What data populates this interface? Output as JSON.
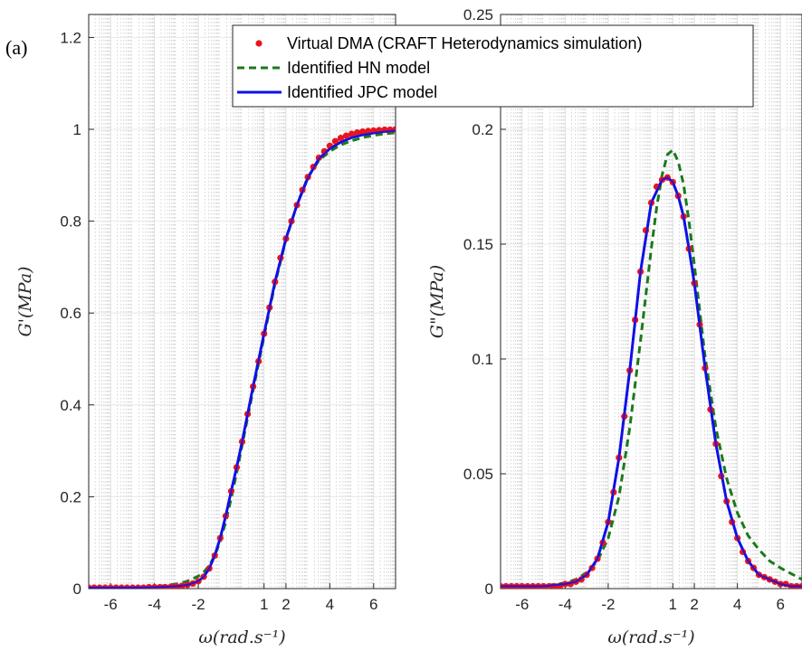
{
  "panel_label": "(a)",
  "legend": {
    "entries": [
      {
        "label": "Virtual DMA (CRAFT Heterodynamics simulation)",
        "color": "#e8141f",
        "style": "dots"
      },
      {
        "label": "Identified HN model",
        "color": "#1a7a1a",
        "style": "dashed"
      },
      {
        "label": "Identified JPC model",
        "color": "#1010e6",
        "style": "solid"
      }
    ]
  },
  "colors": {
    "dma": "#e8141f",
    "hn": "#1a7a1a",
    "jpc": "#1010e6",
    "grid": "#c8c8c8"
  },
  "chart_data": [
    {
      "type": "line",
      "xlabel": "ω(rad.s⁻¹)",
      "ylabel": "G'(MPa)",
      "xlim": [
        -7,
        7
      ],
      "ylim": [
        0,
        1.25
      ],
      "xticks": [
        -6,
        -4,
        -2,
        1,
        2,
        4,
        6
      ],
      "xtick_labels": [
        "-6",
        "-4",
        "-2",
        "1",
        "2",
        "4",
        "6"
      ],
      "yticks": [
        0,
        0.2,
        0.4,
        0.6,
        0.8,
        1,
        1.2
      ],
      "ytick_labels": [
        "0",
        "0.2",
        "0.4",
        "0.6",
        "0.8",
        "1",
        "1.2"
      ],
      "grid": true,
      "series": [
        {
          "name": "Virtual DMA (CRAFT Heterodynamics simulation)",
          "style": "dots",
          "x": [
            -7.0,
            -6.75,
            -6.5,
            -6.25,
            -6.0,
            -5.75,
            -5.5,
            -5.25,
            -5.0,
            -4.75,
            -4.5,
            -4.25,
            -4.0,
            -3.75,
            -3.5,
            -3.25,
            -3.0,
            -2.75,
            -2.5,
            -2.25,
            -2.0,
            -1.75,
            -1.5,
            -1.25,
            -1.0,
            -0.75,
            -0.5,
            -0.25,
            0.0,
            0.25,
            0.5,
            0.75,
            1.0,
            1.25,
            1.5,
            1.75,
            2.0,
            2.25,
            2.5,
            2.75,
            3.0,
            3.25,
            3.5,
            3.75,
            4.0,
            4.25,
            4.5,
            4.75,
            5.0,
            5.25,
            5.5,
            5.75,
            6.0,
            6.25,
            6.5,
            6.75,
            7.0
          ],
          "y": [
            0.002,
            0.002,
            0.002,
            0.002,
            0.002,
            0.002,
            0.002,
            0.002,
            0.002,
            0.002,
            0.002,
            0.003,
            0.003,
            0.003,
            0.003,
            0.004,
            0.005,
            0.006,
            0.008,
            0.011,
            0.016,
            0.026,
            0.044,
            0.072,
            0.11,
            0.158,
            0.212,
            0.264,
            0.32,
            0.38,
            0.44,
            0.495,
            0.555,
            0.612,
            0.668,
            0.72,
            0.762,
            0.8,
            0.835,
            0.868,
            0.896,
            0.918,
            0.938,
            0.952,
            0.964,
            0.974,
            0.981,
            0.986,
            0.99,
            0.993,
            0.995,
            0.996,
            0.997,
            0.998,
            0.999,
            0.999,
            1.0
          ]
        },
        {
          "name": "Identified HN model",
          "style": "dashed",
          "x": [
            -7.0,
            -6.0,
            -5.0,
            -4.0,
            -3.0,
            -2.5,
            -2.0,
            -1.75,
            -1.5,
            -1.25,
            -1.0,
            -0.75,
            -0.5,
            -0.25,
            0.0,
            0.5,
            1.0,
            1.5,
            2.0,
            2.5,
            3.0,
            3.5,
            4.0,
            4.5,
            5.0,
            5.5,
            6.0,
            6.5,
            7.0
          ],
          "y": [
            0.002,
            0.002,
            0.003,
            0.004,
            0.01,
            0.016,
            0.027,
            0.036,
            0.05,
            0.072,
            0.103,
            0.145,
            0.196,
            0.252,
            0.312,
            0.432,
            0.549,
            0.664,
            0.76,
            0.836,
            0.896,
            0.932,
            0.952,
            0.966,
            0.975,
            0.982,
            0.987,
            0.99,
            0.993
          ]
        },
        {
          "name": "Identified JPC model",
          "style": "solid",
          "x": [
            -7.0,
            -6.0,
            -5.0,
            -4.0,
            -3.0,
            -2.5,
            -2.0,
            -1.75,
            -1.5,
            -1.25,
            -1.0,
            -0.75,
            -0.5,
            -0.25,
            0.0,
            0.5,
            1.0,
            1.5,
            2.0,
            2.5,
            3.0,
            3.5,
            4.0,
            4.5,
            5.0,
            5.5,
            6.0,
            6.5,
            7.0
          ],
          "y": [
            0.002,
            0.002,
            0.002,
            0.003,
            0.005,
            0.008,
            0.016,
            0.026,
            0.044,
            0.072,
            0.11,
            0.158,
            0.212,
            0.264,
            0.32,
            0.44,
            0.555,
            0.668,
            0.762,
            0.835,
            0.894,
            0.936,
            0.958,
            0.972,
            0.982,
            0.988,
            0.992,
            0.995,
            0.997
          ]
        }
      ]
    },
    {
      "type": "line",
      "xlabel": "ω(rad.s⁻¹)",
      "ylabel": "G\"(MPa)",
      "xlim": [
        -7,
        7
      ],
      "ylim": [
        0,
        0.25
      ],
      "xticks": [
        -6,
        -4,
        -2,
        1,
        2,
        4,
        6
      ],
      "xtick_labels": [
        "-6",
        "-4",
        "-2",
        "1",
        "2",
        "4",
        "6"
      ],
      "yticks": [
        0,
        0.05,
        0.1,
        0.15,
        0.2,
        0.25
      ],
      "ytick_labels": [
        "0",
        "0.05",
        "0.1",
        "0.15",
        "0.2",
        "0.25"
      ],
      "grid": true,
      "series": [
        {
          "name": "Virtual DMA (CRAFT Heterodynamics simulation)",
          "style": "dots",
          "x": [
            -7.0,
            -6.75,
            -6.5,
            -6.25,
            -6.0,
            -5.75,
            -5.5,
            -5.25,
            -5.0,
            -4.75,
            -4.5,
            -4.25,
            -4.0,
            -3.75,
            -3.5,
            -3.25,
            -3.0,
            -2.75,
            -2.5,
            -2.25,
            -2.0,
            -1.75,
            -1.5,
            -1.25,
            -1.0,
            -0.75,
            -0.5,
            -0.25,
            0.0,
            0.25,
            0.5,
            0.75,
            1.0,
            1.25,
            1.5,
            1.75,
            2.0,
            2.25,
            2.5,
            2.75,
            3.0,
            3.25,
            3.5,
            3.75,
            4.0,
            4.25,
            4.5,
            4.75,
            5.0,
            5.25,
            5.5,
            5.75,
            6.0,
            6.25,
            6.5,
            6.75,
            7.0
          ],
          "y": [
            0.001,
            0.001,
            0.001,
            0.001,
            0.001,
            0.001,
            0.001,
            0.001,
            0.001,
            0.001,
            0.001,
            0.001,
            0.002,
            0.002,
            0.003,
            0.004,
            0.006,
            0.009,
            0.013,
            0.02,
            0.029,
            0.042,
            0.057,
            0.075,
            0.095,
            0.117,
            0.138,
            0.156,
            0.168,
            0.175,
            0.178,
            0.179,
            0.177,
            0.171,
            0.162,
            0.148,
            0.133,
            0.115,
            0.096,
            0.078,
            0.063,
            0.049,
            0.038,
            0.029,
            0.022,
            0.016,
            0.012,
            0.009,
            0.006,
            0.005,
            0.004,
            0.003,
            0.002,
            0.002,
            0.001,
            0.001,
            0.001
          ]
        },
        {
          "name": "Identified HN model",
          "style": "dashed",
          "x": [
            -7.0,
            -6.0,
            -5.0,
            -4.0,
            -3.5,
            -3.0,
            -2.5,
            -2.0,
            -1.5,
            -1.0,
            -0.5,
            0.0,
            0.25,
            0.5,
            0.75,
            1.0,
            1.25,
            1.5,
            1.75,
            2.0,
            2.5,
            3.0,
            3.5,
            4.0,
            4.5,
            5.0,
            5.5,
            6.0,
            7.0
          ],
          "y": [
            0.0005,
            0.0007,
            0.0012,
            0.0025,
            0.004,
            0.007,
            0.012,
            0.022,
            0.04,
            0.07,
            0.108,
            0.148,
            0.166,
            0.18,
            0.189,
            0.191,
            0.186,
            0.176,
            0.16,
            0.141,
            0.101,
            0.07,
            0.048,
            0.033,
            0.023,
            0.017,
            0.012,
            0.009,
            0.004
          ]
        },
        {
          "name": "Identified JPC model",
          "style": "solid",
          "x": [
            -7.0,
            -6.0,
            -5.0,
            -4.0,
            -3.5,
            -3.0,
            -2.5,
            -2.0,
            -1.5,
            -1.0,
            -0.5,
            0.0,
            0.5,
            0.75,
            1.0,
            1.25,
            1.5,
            1.75,
            2.0,
            2.5,
            3.0,
            3.5,
            4.0,
            4.5,
            5.0,
            5.5,
            6.0,
            6.5,
            7.0
          ],
          "y": [
            0.001,
            0.001,
            0.001,
            0.002,
            0.003,
            0.006,
            0.013,
            0.029,
            0.057,
            0.095,
            0.138,
            0.168,
            0.178,
            0.179,
            0.177,
            0.171,
            0.162,
            0.148,
            0.133,
            0.096,
            0.063,
            0.038,
            0.022,
            0.012,
            0.006,
            0.004,
            0.002,
            0.001,
            0.001
          ]
        }
      ]
    }
  ]
}
